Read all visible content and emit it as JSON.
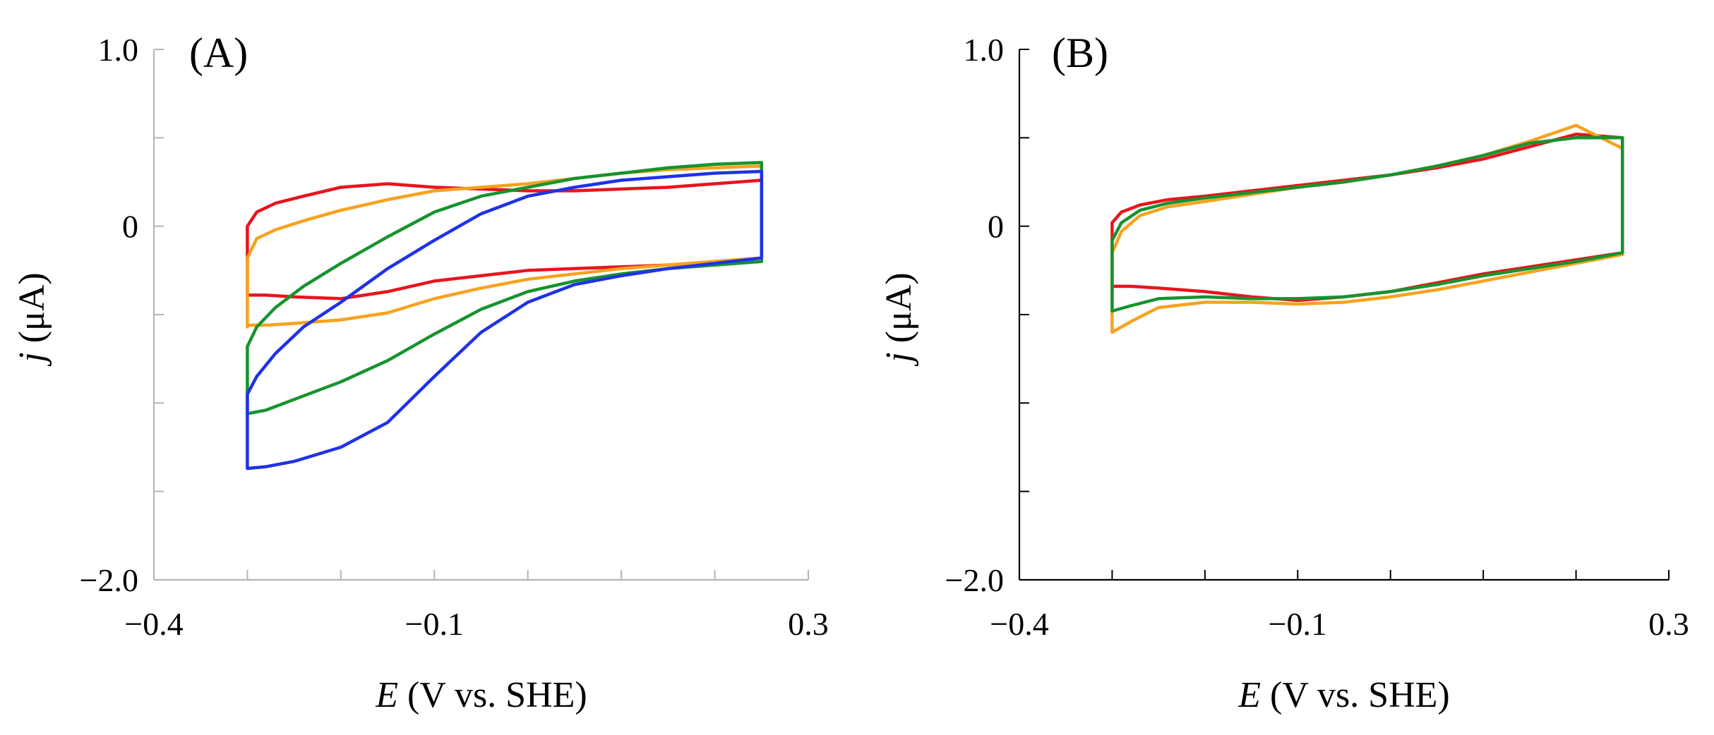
{
  "chart_data": [
    {
      "panel": "(A)",
      "type": "line",
      "xlabel_italic": "E",
      "xlabel_rest": " (V vs. SHE)",
      "ylabel_italic": "j",
      "ylabel_rest": " (μA)",
      "xlim": [
        -0.4,
        0.3
      ],
      "ylim": [
        -2.0,
        1.0
      ],
      "xticks": [
        -0.4,
        -0.3,
        -0.2,
        -0.1,
        0.0,
        0.1,
        0.2,
        0.3
      ],
      "yticks": [
        -2.0,
        -1.5,
        -1.0,
        -0.5,
        0.0,
        0.5,
        1.0
      ],
      "xtick_labels": [
        {
          "value": -0.4,
          "label": "−0.4"
        },
        {
          "value": -0.1,
          "label": "−0.1"
        },
        {
          "value": 0.3,
          "label": "0.3"
        }
      ],
      "ytick_labels": [
        {
          "value": 1.0,
          "label": "1.0"
        },
        {
          "value": 0.0,
          "label": "0"
        },
        {
          "value": -2.0,
          "label": "−2.0"
        }
      ],
      "axis_style": "light",
      "series": [
        {
          "name": "red",
          "color": "#e8141e",
          "x": [
            -0.3,
            -0.3,
            -0.3,
            -0.29,
            -0.27,
            -0.24,
            -0.2,
            -0.15,
            -0.1,
            -0.05,
            0.0,
            0.05,
            0.1,
            0.15,
            0.2,
            0.25,
            0.25,
            0.25,
            0.2,
            0.15,
            0.1,
            0.05,
            0.0,
            -0.05,
            -0.1,
            -0.15,
            -0.2,
            -0.25,
            -0.28,
            -0.3,
            -0.3
          ],
          "y": [
            -0.38,
            -0.2,
            0.0,
            0.08,
            0.13,
            0.17,
            0.22,
            0.24,
            0.22,
            0.21,
            0.2,
            0.2,
            0.21,
            0.22,
            0.24,
            0.26,
            -0.15,
            -0.18,
            -0.2,
            -0.22,
            -0.23,
            -0.24,
            -0.25,
            -0.28,
            -0.31,
            -0.37,
            -0.41,
            -0.4,
            -0.39,
            -0.39,
            -0.38
          ]
        },
        {
          "name": "orange",
          "color": "#f7a21e",
          "x": [
            -0.3,
            -0.3,
            -0.3,
            -0.29,
            -0.27,
            -0.24,
            -0.2,
            -0.15,
            -0.1,
            -0.05,
            0.0,
            0.05,
            0.1,
            0.15,
            0.2,
            0.25,
            0.25,
            0.25,
            0.2,
            0.15,
            0.1,
            0.05,
            0.0,
            -0.05,
            -0.1,
            -0.15,
            -0.2,
            -0.25,
            -0.28,
            -0.3,
            -0.3
          ],
          "y": [
            -0.57,
            -0.4,
            -0.18,
            -0.07,
            -0.02,
            0.03,
            0.09,
            0.15,
            0.2,
            0.22,
            0.24,
            0.27,
            0.3,
            0.32,
            0.33,
            0.34,
            -0.16,
            -0.18,
            -0.2,
            -0.22,
            -0.24,
            -0.27,
            -0.3,
            -0.35,
            -0.41,
            -0.49,
            -0.53,
            -0.55,
            -0.56,
            -0.56,
            -0.57
          ]
        },
        {
          "name": "green",
          "color": "#16932e",
          "x": [
            -0.3,
            -0.3,
            -0.3,
            -0.29,
            -0.27,
            -0.24,
            -0.2,
            -0.15,
            -0.1,
            -0.05,
            0.0,
            0.05,
            0.1,
            0.15,
            0.2,
            0.25,
            0.25,
            0.25,
            0.2,
            0.15,
            0.1,
            0.05,
            0.0,
            -0.05,
            -0.1,
            -0.15,
            -0.2,
            -0.25,
            -0.28,
            -0.3,
            -0.3
          ],
          "y": [
            -1.06,
            -0.85,
            -0.68,
            -0.57,
            -0.46,
            -0.34,
            -0.21,
            -0.06,
            0.08,
            0.17,
            0.22,
            0.27,
            0.3,
            0.33,
            0.35,
            0.36,
            -0.18,
            -0.2,
            -0.22,
            -0.24,
            -0.27,
            -0.31,
            -0.37,
            -0.47,
            -0.61,
            -0.76,
            -0.88,
            -0.98,
            -1.04,
            -1.06,
            -1.06
          ]
        },
        {
          "name": "blue",
          "color": "#1f32e6",
          "x": [
            -0.3,
            -0.3,
            -0.3,
            -0.29,
            -0.27,
            -0.24,
            -0.2,
            -0.15,
            -0.1,
            -0.05,
            0.0,
            0.05,
            0.1,
            0.15,
            0.2,
            0.25,
            0.25,
            0.25,
            0.2,
            0.15,
            0.1,
            0.05,
            0.0,
            -0.05,
            -0.1,
            -0.15,
            -0.2,
            -0.25,
            -0.28,
            -0.3,
            -0.3
          ],
          "y": [
            -1.37,
            -1.15,
            -0.95,
            -0.85,
            -0.72,
            -0.57,
            -0.43,
            -0.24,
            -0.08,
            0.07,
            0.17,
            0.22,
            0.26,
            0.28,
            0.3,
            0.31,
            -0.1,
            -0.18,
            -0.21,
            -0.24,
            -0.28,
            -0.33,
            -0.43,
            -0.6,
            -0.85,
            -1.11,
            -1.25,
            -1.33,
            -1.36,
            -1.37,
            -1.37
          ]
        }
      ]
    },
    {
      "panel": "(B)",
      "type": "line",
      "xlabel_italic": "E",
      "xlabel_rest": " (V vs. SHE)",
      "ylabel_italic": "j",
      "ylabel_rest": " (μA)",
      "xlim": [
        -0.4,
        0.3
      ],
      "ylim": [
        -2.0,
        1.0
      ],
      "xticks": [
        -0.4,
        -0.3,
        -0.2,
        -0.1,
        0.0,
        0.1,
        0.2,
        0.3
      ],
      "yticks": [
        -2.0,
        -1.5,
        -1.0,
        -0.5,
        0.0,
        0.5,
        1.0
      ],
      "xtick_labels": [
        {
          "value": -0.4,
          "label": "−0.4"
        },
        {
          "value": -0.1,
          "label": "−0.1"
        },
        {
          "value": 0.3,
          "label": "0.3"
        }
      ],
      "ytick_labels": [
        {
          "value": 1.0,
          "label": "1.0"
        },
        {
          "value": 0.0,
          "label": "0"
        },
        {
          "value": -2.0,
          "label": "−2.0"
        }
      ],
      "axis_style": "dark",
      "series": [
        {
          "name": "red",
          "color": "#e8141e",
          "x": [
            -0.3,
            -0.3,
            -0.3,
            -0.29,
            -0.27,
            -0.24,
            -0.2,
            -0.15,
            -0.1,
            -0.05,
            0.0,
            0.05,
            0.1,
            0.15,
            0.2,
            0.25,
            0.25,
            0.25,
            0.2,
            0.15,
            0.1,
            0.05,
            0.0,
            -0.05,
            -0.1,
            -0.15,
            -0.2,
            -0.25,
            -0.28,
            -0.3,
            -0.3
          ],
          "y": [
            -0.35,
            -0.1,
            0.02,
            0.08,
            0.12,
            0.15,
            0.17,
            0.2,
            0.23,
            0.26,
            0.29,
            0.33,
            0.38,
            0.45,
            0.52,
            0.5,
            -0.12,
            -0.15,
            -0.19,
            -0.23,
            -0.27,
            -0.32,
            -0.37,
            -0.4,
            -0.42,
            -0.4,
            -0.37,
            -0.35,
            -0.34,
            -0.34,
            -0.35
          ]
        },
        {
          "name": "orange",
          "color": "#f7a21e",
          "x": [
            -0.3,
            -0.3,
            -0.3,
            -0.29,
            -0.27,
            -0.24,
            -0.2,
            -0.15,
            -0.1,
            -0.05,
            0.0,
            0.05,
            0.1,
            0.15,
            0.2,
            0.25,
            0.25,
            0.25,
            0.2,
            0.15,
            0.1,
            0.05,
            0.0,
            -0.05,
            -0.1,
            -0.15,
            -0.2,
            -0.25,
            -0.28,
            -0.3,
            -0.3
          ],
          "y": [
            -0.58,
            -0.35,
            -0.15,
            -0.03,
            0.06,
            0.11,
            0.14,
            0.18,
            0.22,
            0.25,
            0.29,
            0.34,
            0.4,
            0.48,
            0.57,
            0.44,
            -0.12,
            -0.16,
            -0.21,
            -0.26,
            -0.31,
            -0.36,
            -0.4,
            -0.43,
            -0.44,
            -0.43,
            -0.43,
            -0.46,
            -0.54,
            -0.6,
            -0.58
          ]
        },
        {
          "name": "green",
          "color": "#16932e",
          "x": [
            -0.3,
            -0.3,
            -0.3,
            -0.29,
            -0.27,
            -0.24,
            -0.2,
            -0.15,
            -0.1,
            -0.05,
            0.0,
            0.05,
            0.1,
            0.15,
            0.2,
            0.25,
            0.25,
            0.25,
            0.2,
            0.15,
            0.1,
            0.05,
            0.0,
            -0.05,
            -0.1,
            -0.15,
            -0.2,
            -0.25,
            -0.28,
            -0.3,
            -0.3
          ],
          "y": [
            -0.48,
            -0.2,
            -0.08,
            0.02,
            0.09,
            0.13,
            0.16,
            0.19,
            0.22,
            0.25,
            0.29,
            0.34,
            0.4,
            0.47,
            0.5,
            0.5,
            -0.05,
            -0.15,
            -0.2,
            -0.24,
            -0.28,
            -0.33,
            -0.37,
            -0.4,
            -0.41,
            -0.41,
            -0.4,
            -0.41,
            -0.45,
            -0.48,
            -0.48
          ]
        }
      ]
    }
  ]
}
